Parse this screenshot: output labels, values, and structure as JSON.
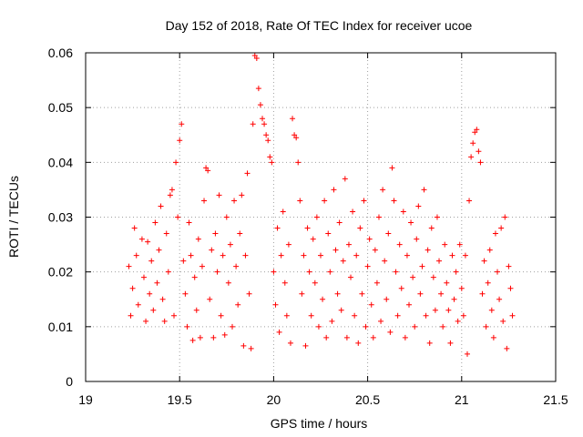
{
  "chart_data": {
    "type": "scatter",
    "title": "Day 152 of 2018, Rate Of TEC Index for receiver ucoe",
    "xlabel": "GPS time / hours",
    "ylabel": "ROTI / TECUs",
    "xlim": [
      19,
      21.5
    ],
    "ylim": [
      0,
      0.06
    ],
    "xticks": [
      "19",
      "19.5",
      "20",
      "20.5",
      "21",
      "21.5"
    ],
    "yticks": [
      "0",
      "0.01",
      "0.02",
      "0.03",
      "0.04",
      "0.05",
      "0.06"
    ],
    "marker": "+",
    "grid": true,
    "series": [
      {
        "name": "ROTI",
        "color": "#ff0000",
        "points": [
          [
            19.23,
            0.021
          ],
          [
            19.24,
            0.012
          ],
          [
            19.25,
            0.017
          ],
          [
            19.26,
            0.028
          ],
          [
            19.27,
            0.023
          ],
          [
            19.28,
            0.014
          ],
          [
            19.3,
            0.026
          ],
          [
            19.31,
            0.019
          ],
          [
            19.32,
            0.011
          ],
          [
            19.33,
            0.0255
          ],
          [
            19.34,
            0.016
          ],
          [
            19.35,
            0.022
          ],
          [
            19.36,
            0.013
          ],
          [
            19.37,
            0.029
          ],
          [
            19.38,
            0.018
          ],
          [
            19.39,
            0.024
          ],
          [
            19.4,
            0.032
          ],
          [
            19.41,
            0.015
          ],
          [
            19.42,
            0.011
          ],
          [
            19.43,
            0.027
          ],
          [
            19.44,
            0.02
          ],
          [
            19.45,
            0.034
          ],
          [
            19.46,
            0.035
          ],
          [
            19.47,
            0.012
          ],
          [
            19.48,
            0.04
          ],
          [
            19.49,
            0.03
          ],
          [
            19.5,
            0.044
          ],
          [
            19.51,
            0.047
          ],
          [
            19.52,
            0.022
          ],
          [
            19.53,
            0.016
          ],
          [
            19.54,
            0.01
          ],
          [
            19.55,
            0.029
          ],
          [
            19.56,
            0.023
          ],
          [
            19.57,
            0.0075
          ],
          [
            19.58,
            0.019
          ],
          [
            19.59,
            0.013
          ],
          [
            19.6,
            0.026
          ],
          [
            19.61,
            0.008
          ],
          [
            19.62,
            0.021
          ],
          [
            19.63,
            0.033
          ],
          [
            19.64,
            0.039
          ],
          [
            19.65,
            0.0385
          ],
          [
            19.66,
            0.015
          ],
          [
            19.67,
            0.024
          ],
          [
            19.68,
            0.008
          ],
          [
            19.69,
            0.027
          ],
          [
            19.7,
            0.02
          ],
          [
            19.71,
            0.034
          ],
          [
            19.72,
            0.012
          ],
          [
            19.73,
            0.023
          ],
          [
            19.74,
            0.0085
          ],
          [
            19.75,
            0.03
          ],
          [
            19.76,
            0.018
          ],
          [
            19.77,
            0.025
          ],
          [
            19.78,
            0.01
          ],
          [
            19.79,
            0.033
          ],
          [
            19.8,
            0.021
          ],
          [
            19.81,
            0.014
          ],
          [
            19.82,
            0.027
          ],
          [
            19.83,
            0.034
          ],
          [
            19.84,
            0.0065
          ],
          [
            19.85,
            0.023
          ],
          [
            19.86,
            0.038
          ],
          [
            19.87,
            0.016
          ],
          [
            19.88,
            0.006
          ],
          [
            19.89,
            0.047
          ],
          [
            19.9,
            0.0595
          ],
          [
            19.91,
            0.059
          ],
          [
            19.92,
            0.0535
          ],
          [
            19.93,
            0.0505
          ],
          [
            19.94,
            0.048
          ],
          [
            19.95,
            0.047
          ],
          [
            19.96,
            0.045
          ],
          [
            19.97,
            0.044
          ],
          [
            19.98,
            0.041
          ],
          [
            19.99,
            0.04
          ],
          [
            20.0,
            0.02
          ],
          [
            20.01,
            0.014
          ],
          [
            20.02,
            0.028
          ],
          [
            20.03,
            0.009
          ],
          [
            20.04,
            0.023
          ],
          [
            20.05,
            0.031
          ],
          [
            20.06,
            0.018
          ],
          [
            20.07,
            0.012
          ],
          [
            20.08,
            0.025
          ],
          [
            20.09,
            0.007
          ],
          [
            20.1,
            0.048
          ],
          [
            20.11,
            0.045
          ],
          [
            20.12,
            0.0445
          ],
          [
            20.13,
            0.04
          ],
          [
            20.14,
            0.033
          ],
          [
            20.15,
            0.016
          ],
          [
            20.16,
            0.023
          ],
          [
            20.17,
            0.0065
          ],
          [
            20.18,
            0.028
          ],
          [
            20.19,
            0.02
          ],
          [
            20.2,
            0.012
          ],
          [
            20.21,
            0.026
          ],
          [
            20.22,
            0.018
          ],
          [
            20.23,
            0.03
          ],
          [
            20.24,
            0.01
          ],
          [
            20.25,
            0.023
          ],
          [
            20.26,
            0.015
          ],
          [
            20.27,
            0.033
          ],
          [
            20.28,
            0.008
          ],
          [
            20.29,
            0.027
          ],
          [
            20.3,
            0.02
          ],
          [
            20.31,
            0.011
          ],
          [
            20.32,
            0.035
          ],
          [
            20.33,
            0.024
          ],
          [
            20.34,
            0.016
          ],
          [
            20.35,
            0.029
          ],
          [
            20.36,
            0.013
          ],
          [
            20.37,
            0.022
          ],
          [
            20.38,
            0.037
          ],
          [
            20.39,
            0.008
          ],
          [
            20.4,
            0.025
          ],
          [
            20.41,
            0.019
          ],
          [
            20.42,
            0.031
          ],
          [
            20.43,
            0.012
          ],
          [
            20.44,
            0.023
          ],
          [
            20.45,
            0.007
          ],
          [
            20.46,
            0.028
          ],
          [
            20.47,
            0.016
          ],
          [
            20.48,
            0.033
          ],
          [
            20.49,
            0.01
          ],
          [
            20.5,
            0.021
          ],
          [
            20.51,
            0.026
          ],
          [
            20.52,
            0.014
          ],
          [
            20.53,
            0.008
          ],
          [
            20.54,
            0.024
          ],
          [
            20.55,
            0.018
          ],
          [
            20.56,
            0.03
          ],
          [
            20.57,
            0.011
          ],
          [
            20.58,
            0.035
          ],
          [
            20.59,
            0.022
          ],
          [
            20.6,
            0.015
          ],
          [
            20.61,
            0.027
          ],
          [
            20.62,
            0.009
          ],
          [
            20.63,
            0.039
          ],
          [
            20.64,
            0.033
          ],
          [
            20.65,
            0.02
          ],
          [
            20.66,
            0.012
          ],
          [
            20.67,
            0.025
          ],
          [
            20.68,
            0.017
          ],
          [
            20.69,
            0.031
          ],
          [
            20.7,
            0.008
          ],
          [
            20.71,
            0.023
          ],
          [
            20.72,
            0.014
          ],
          [
            20.73,
            0.029
          ],
          [
            20.74,
            0.019
          ],
          [
            20.75,
            0.01
          ],
          [
            20.76,
            0.026
          ],
          [
            20.77,
            0.032
          ],
          [
            20.78,
            0.016
          ],
          [
            20.79,
            0.021
          ],
          [
            20.8,
            0.035
          ],
          [
            20.81,
            0.012
          ],
          [
            20.82,
            0.024
          ],
          [
            20.83,
            0.007
          ],
          [
            20.84,
            0.028
          ],
          [
            20.85,
            0.019
          ],
          [
            20.86,
            0.013
          ],
          [
            20.87,
            0.03
          ],
          [
            20.88,
            0.022
          ],
          [
            20.89,
            0.016
          ],
          [
            20.9,
            0.01
          ],
          [
            20.91,
            0.025
          ],
          [
            20.92,
            0.018
          ],
          [
            20.93,
            0.013
          ],
          [
            20.94,
            0.007
          ],
          [
            20.95,
            0.023
          ],
          [
            20.96,
            0.015
          ],
          [
            20.97,
            0.02
          ],
          [
            20.98,
            0.011
          ],
          [
            20.99,
            0.025
          ],
          [
            21.0,
            0.017
          ],
          [
            21.01,
            0.012
          ],
          [
            21.02,
            0.023
          ],
          [
            21.03,
            0.005
          ],
          [
            21.04,
            0.033
          ],
          [
            21.05,
            0.041
          ],
          [
            21.06,
            0.0435
          ],
          [
            21.07,
            0.0455
          ],
          [
            21.08,
            0.046
          ],
          [
            21.09,
            0.042
          ],
          [
            21.1,
            0.04
          ],
          [
            21.11,
            0.016
          ],
          [
            21.12,
            0.022
          ],
          [
            21.13,
            0.01
          ],
          [
            21.14,
            0.018
          ],
          [
            21.15,
            0.024
          ],
          [
            21.16,
            0.013
          ],
          [
            21.17,
            0.008
          ],
          [
            21.18,
            0.027
          ],
          [
            21.19,
            0.02
          ],
          [
            21.2,
            0.015
          ],
          [
            21.21,
            0.028
          ],
          [
            21.22,
            0.011
          ],
          [
            21.23,
            0.03
          ],
          [
            21.24,
            0.006
          ],
          [
            21.25,
            0.021
          ],
          [
            21.26,
            0.017
          ],
          [
            21.27,
            0.012
          ]
        ]
      }
    ]
  }
}
